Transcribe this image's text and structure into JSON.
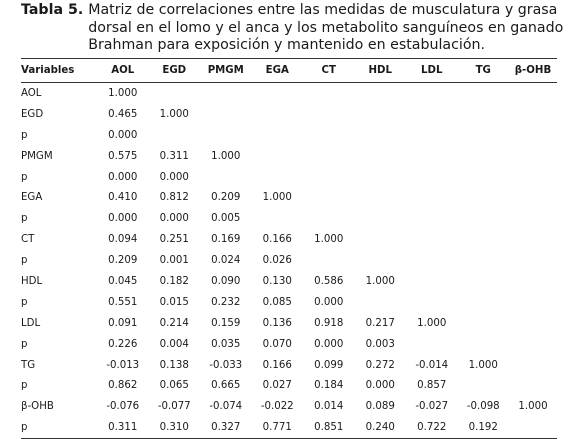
{
  "caption": {
    "label": "Tabla 5.",
    "text": "Matriz de correlaciones entre las medidas de musculatura y grasa dorsal en el lomo y el anca y los metabolito sanguíneos en ganado Brahman para exposición y mantenido en estabulación."
  },
  "table": {
    "headers": [
      "Variables",
      "AOL",
      "EGD",
      "PMGM",
      "EGA",
      "CT",
      "HDL",
      "LDL",
      "TG",
      "β-OHB"
    ],
    "rows": [
      [
        "AOL",
        "1.000",
        "",
        "",
        "",
        "",
        "",
        "",
        "",
        ""
      ],
      [
        "EGD",
        "0.465",
        "1.000",
        "",
        "",
        "",
        "",
        "",
        "",
        ""
      ],
      [
        "p",
        "0.000",
        "",
        "",
        "",
        "",
        "",
        "",
        "",
        ""
      ],
      [
        "PMGM",
        "0.575",
        "0.311",
        "1.000",
        "",
        "",
        "",
        "",
        "",
        ""
      ],
      [
        "p",
        "0.000",
        "0.000",
        "",
        "",
        "",
        "",
        "",
        "",
        ""
      ],
      [
        "EGA",
        "0.410",
        "0.812",
        "0.209",
        "1.000",
        "",
        "",
        "",
        "",
        ""
      ],
      [
        "p",
        "0.000",
        "0.000",
        "0.005",
        "",
        "",
        "",
        "",
        "",
        ""
      ],
      [
        "CT",
        "0.094",
        "0.251",
        "0.169",
        "0.166",
        "1.000",
        "",
        "",
        "",
        ""
      ],
      [
        "p",
        "0.209",
        "0.001",
        "0.024",
        "0.026",
        "",
        "",
        "",
        "",
        ""
      ],
      [
        "HDL",
        "0.045",
        "0.182",
        "0.090",
        "0.130",
        "0.586",
        "1.000",
        "",
        "",
        ""
      ],
      [
        "p",
        "0.551",
        "0.015",
        "0.232",
        "0.085",
        "0.000",
        "",
        "",
        "",
        ""
      ],
      [
        "LDL",
        "0.091",
        "0.214",
        "0.159",
        "0.136",
        "0.918",
        "0.217",
        "1.000",
        "",
        ""
      ],
      [
        "p",
        "0.226",
        "0.004",
        "0.035",
        "0.070",
        "0.000",
        "0.003",
        "",
        "",
        ""
      ],
      [
        "TG",
        "-0.013",
        "0.138",
        "-0.033",
        "0.166",
        "0.099",
        "0.272",
        "-0.014",
        "1.000",
        ""
      ],
      [
        "p",
        "0.862",
        "0.065",
        "0.665",
        "0.027",
        "0.184",
        "0.000",
        "0.857",
        "",
        ""
      ],
      [
        "β-OHB",
        "-0.076",
        "-0.077",
        "-0.074",
        "-0.022",
        "0.014",
        "0.089",
        "-0.027",
        "-0.098",
        "1.000"
      ],
      [
        "p",
        "0.311",
        "0.310",
        "0.327",
        "0.771",
        "0.851",
        "0.240",
        "0.722",
        "0.192",
        ""
      ]
    ]
  }
}
